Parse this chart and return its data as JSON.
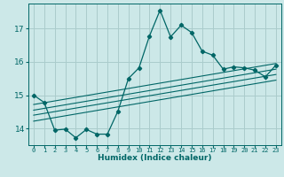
{
  "xlabel": "Humidex (Indice chaleur)",
  "bg_color": "#cce8e8",
  "grid_color": "#aacccc",
  "line_color": "#006666",
  "xlim": [
    -0.5,
    23.5
  ],
  "ylim": [
    13.5,
    17.75
  ],
  "yticks": [
    14,
    15,
    16,
    17
  ],
  "xtick_labels": [
    "0",
    "1",
    "2",
    "3",
    "4",
    "5",
    "6",
    "7",
    "8",
    "9",
    "10",
    "11",
    "12",
    "13",
    "14",
    "15",
    "16",
    "17",
    "18",
    "19",
    "20",
    "21",
    "22",
    "23"
  ],
  "data_x": [
    0,
    1,
    2,
    3,
    4,
    5,
    6,
    7,
    8,
    9,
    10,
    11,
    12,
    13,
    14,
    15,
    16,
    17,
    18,
    19,
    20,
    21,
    22,
    23
  ],
  "data_y": [
    15.0,
    14.78,
    13.95,
    13.98,
    13.72,
    13.97,
    13.83,
    13.83,
    14.52,
    15.5,
    15.82,
    16.78,
    17.55,
    16.75,
    17.1,
    16.88,
    16.32,
    16.2,
    15.78,
    15.85,
    15.82,
    15.75,
    15.55,
    15.9
  ],
  "trend_lines": [
    {
      "x0": 0,
      "y0": 14.72,
      "x1": 23,
      "y1": 15.95
    },
    {
      "x0": 0,
      "y0": 14.55,
      "x1": 23,
      "y1": 15.78
    },
    {
      "x0": 0,
      "y0": 14.4,
      "x1": 23,
      "y1": 15.62
    },
    {
      "x0": 0,
      "y0": 14.22,
      "x1": 23,
      "y1": 15.45
    }
  ]
}
